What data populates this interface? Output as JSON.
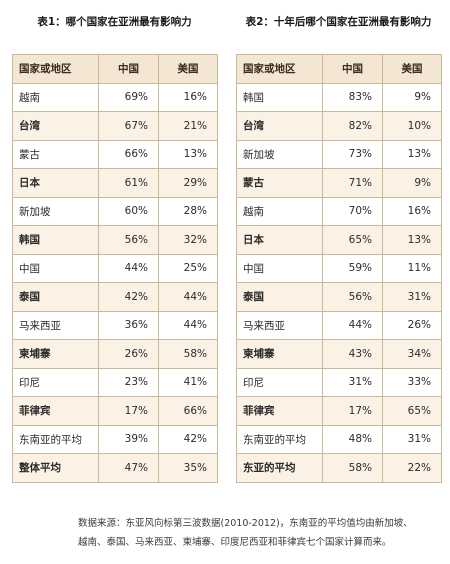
{
  "chart_data": [
    {
      "type": "table",
      "title": "表1：哪个国家在亚洲最有影响力",
      "columns": [
        "国家或地区",
        "中国",
        "美国"
      ],
      "rows": [
        {
          "name": "越南",
          "china": "69%",
          "usa": "16%"
        },
        {
          "name": "台湾",
          "china": "67%",
          "usa": "21%"
        },
        {
          "name": "蒙古",
          "china": "66%",
          "usa": "13%"
        },
        {
          "name": "日本",
          "china": "61%",
          "usa": "29%"
        },
        {
          "name": "新加坡",
          "china": "60%",
          "usa": "28%"
        },
        {
          "name": "韩国",
          "china": "56%",
          "usa": "32%"
        },
        {
          "name": "中国",
          "china": "44%",
          "usa": "25%"
        },
        {
          "name": "泰国",
          "china": "42%",
          "usa": "44%"
        },
        {
          "name": "马来西亚",
          "china": "36%",
          "usa": "44%"
        },
        {
          "name": "柬埔寨",
          "china": "26%",
          "usa": "58%"
        },
        {
          "name": "印尼",
          "china": "23%",
          "usa": "41%"
        },
        {
          "name": "菲律宾",
          "china": "17%",
          "usa": "66%"
        },
        {
          "name": "东南亚的平均",
          "china": "39%",
          "usa": "42%"
        },
        {
          "name": "整体平均",
          "china": "47%",
          "usa": "35%"
        }
      ]
    },
    {
      "type": "table",
      "title": "表2：十年后哪个国家在亚洲最有影响力",
      "columns": [
        "国家或地区",
        "中国",
        "美国"
      ],
      "rows": [
        {
          "name": "韩国",
          "china": "83%",
          "usa": "9%"
        },
        {
          "name": "台湾",
          "china": "82%",
          "usa": "10%"
        },
        {
          "name": "新加坡",
          "china": "73%",
          "usa": "13%"
        },
        {
          "name": "蒙古",
          "china": "71%",
          "usa": "9%"
        },
        {
          "name": "越南",
          "china": "70%",
          "usa": "16%"
        },
        {
          "name": "日本",
          "china": "65%",
          "usa": "13%"
        },
        {
          "name": "中国",
          "china": "59%",
          "usa": "11%"
        },
        {
          "name": "泰国",
          "china": "56%",
          "usa": "31%"
        },
        {
          "name": "马来西亚",
          "china": "44%",
          "usa": "26%"
        },
        {
          "name": "柬埔寨",
          "china": "43%",
          "usa": "34%"
        },
        {
          "name": "印尼",
          "china": "31%",
          "usa": "33%"
        },
        {
          "name": "菲律宾",
          "china": "17%",
          "usa": "65%"
        },
        {
          "name": "东南亚的平均",
          "china": "48%",
          "usa": "31%"
        },
        {
          "name": "东亚的平均",
          "china": "58%",
          "usa": "22%"
        }
      ]
    }
  ],
  "note": {
    "line1": "数据来源：东亚风向标第三波数据(2010-2012)，东南亚的平均值均由新加坡、",
    "line2": "越南、泰国、马来西亚、柬埔寨、印度尼西亚和菲律宾七个国家计算而来。"
  },
  "colors": {
    "header_bg": "#f3e6d3",
    "shade_bg": "#fbf1e4",
    "border": "#c9b89a"
  }
}
